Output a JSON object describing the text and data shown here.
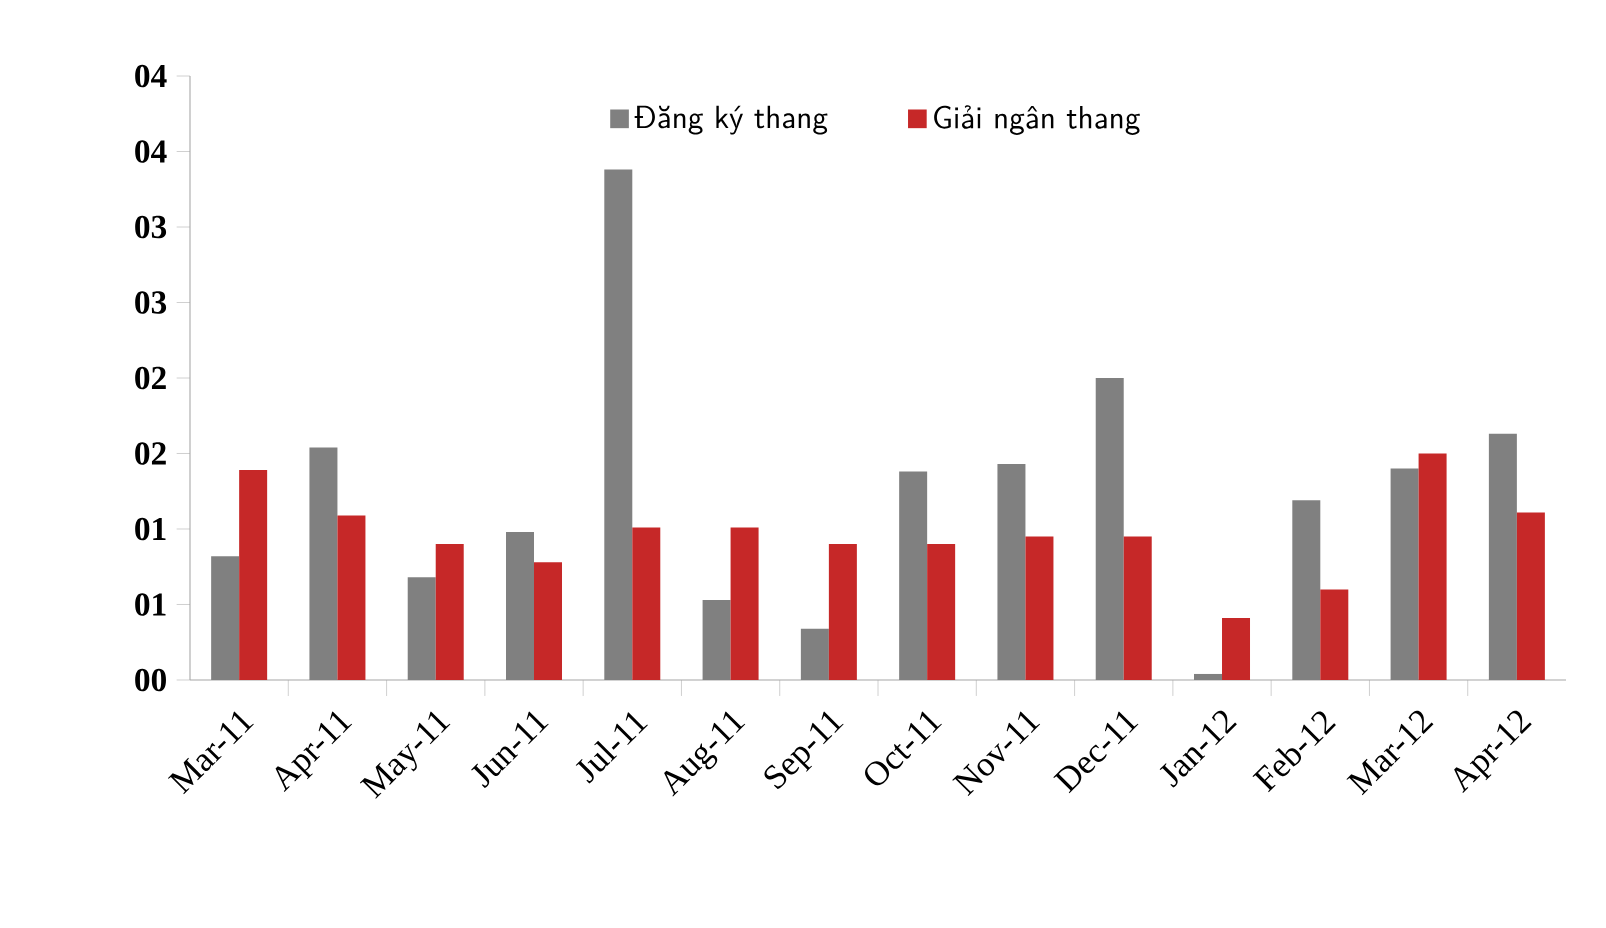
{
  "chart_data": {
    "type": "bar",
    "categories": [
      "Mar-11",
      "Apr-11",
      "May-11",
      "Jun-11",
      "Jul-11",
      "Aug-11",
      "Sep-11",
      "Oct-11",
      "Nov-11",
      "Dec-11",
      "Jan-12",
      "Feb-12",
      "Mar-12",
      "Apr-12"
    ],
    "series": [
      {
        "name": "Đăng ký thang",
        "color": "#808080",
        "values": [
          0.82,
          1.54,
          0.68,
          0.98,
          3.38,
          0.53,
          0.34,
          1.38,
          1.43,
          2.0,
          0.04,
          1.19,
          1.4,
          1.63
        ]
      },
      {
        "name": "Giải ngân thang",
        "color": "#c62828",
        "values": [
          1.39,
          1.09,
          0.9,
          0.78,
          1.01,
          1.01,
          0.9,
          0.9,
          0.95,
          0.95,
          0.41,
          0.6,
          1.5,
          1.11
        ]
      }
    ],
    "ylim": [
      0,
      4
    ],
    "yticks": [
      {
        "value": 0,
        "label": "00"
      },
      {
        "value": 0.5,
        "label": "01"
      },
      {
        "value": 1,
        "label": "01"
      },
      {
        "value": 1.5,
        "label": "02"
      },
      {
        "value": 2,
        "label": "02"
      },
      {
        "value": 2.5,
        "label": "03"
      },
      {
        "value": 3,
        "label": "03"
      },
      {
        "value": 3.5,
        "label": "04"
      },
      {
        "value": 4,
        "label": "04"
      }
    ],
    "legend": "top"
  }
}
